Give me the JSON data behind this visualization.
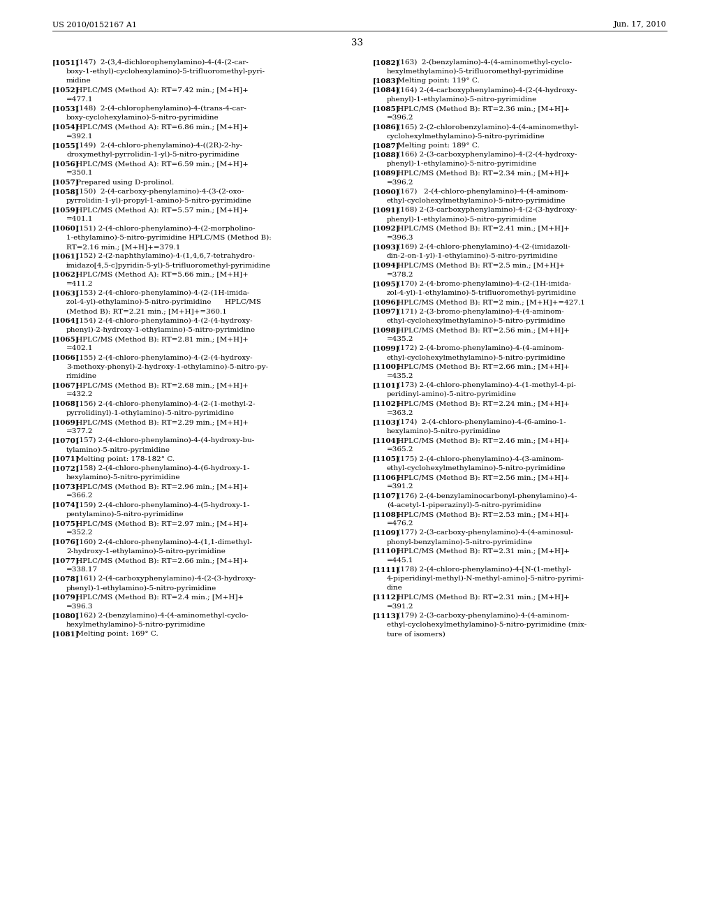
{
  "header_left": "US 2010/0152167 A1",
  "header_right": "Jun. 17, 2010",
  "page_number": "33",
  "bg": "#ffffff",
  "fg": "#000000",
  "left_entries": [
    [
      "[1051]",
      " (147)  2-(3,4-dichlorophenylamino)-4-(4-(2-car-",
      "boxy-1-ethyl)-cyclohexylamino)-5-trifluoromethyl-pyri-",
      "midine"
    ],
    [
      "[1052]",
      " HPLC/MS (Method A): RT=7.42 min.; [M+H]+",
      "=477.1"
    ],
    [
      "[1053]",
      " (148)  2-(4-chlorophenylamino)-4-(trans-4-car-",
      "boxy-cyclohexylamino)-5-nitro-pyrimidine"
    ],
    [
      "[1054]",
      " HPLC/MS (Method A): RT=6.86 min.; [M+H]+",
      "=392.1"
    ],
    [
      "[1055]",
      " (149)  2-(4-chloro-phenylamino)-4-((2R)-2-hy-",
      "droxymethyl-pyrrolidin-1-yl)-5-nitro-pyrimidine"
    ],
    [
      "[1056]",
      " HPLC/MS (Method A): RT=6.59 min.; [M+H]+",
      "=350.1"
    ],
    [
      "[1057]",
      " Prepared using D-prolinol."
    ],
    [
      "[1058]",
      " (150)  2-(4-carboxy-phenylamino)-4-(3-(2-oxo-",
      "pyrrolidin-1-yl)-propyl-1-amino)-5-nitro-pyrimidine"
    ],
    [
      "[1059]",
      " HPLC/MS (Method A): RT=5.57 min.; [M+H]+",
      "=401.1"
    ],
    [
      "[1060]",
      " (151) 2-(4-chloro-phenylamino)-4-(2-morpholino-",
      "1-ethylamino)-5-nitro-pyrimidine HPLC/MS (Method B):",
      "RT=2.16 min.; [M+H]+=379.1"
    ],
    [
      "[1061]",
      " (152) 2-(2-naphthylamino)-4-(1,4,6,7-tetrahydro-",
      "imidazo[4,5-c]pyridin-5-yl)-5-trifluoromethyl-pyrimidine"
    ],
    [
      "[1062]",
      " HPLC/MS (Method A): RT=5.66 min.; [M+H]+",
      "=411.2"
    ],
    [
      "[1063]",
      " (153) 2-(4-chloro-phenylamino)-4-(2-(1H-imida-",
      "zol-4-yl)-ethylamino)-5-nitro-pyrimidine      HPLC/MS",
      "(Method B): RT=2.21 min.; [M+H]+=360.1"
    ],
    [
      "[1064]",
      " (154) 2-(4-chloro-phenylamino)-4-(2-(4-hydroxy-",
      "phenyl)-2-hydroxy-1-ethylamino)-5-nitro-pyrimidine"
    ],
    [
      "[1065]",
      " HPLC/MS (Method B): RT=2.81 min.; [M+H]+",
      "=402.1"
    ],
    [
      "[1066]",
      " (155) 2-(4-chloro-phenylamino)-4-(2-(4-hydroxy-",
      "3-methoxy-phenyl)-2-hydroxy-1-ethylamino)-5-nitro-py-",
      "rimidine"
    ],
    [
      "[1067]",
      " HPLC/MS (Method B): RT=2.68 min.; [M+H]+",
      "=432.2"
    ],
    [
      "[1068]",
      " (156) 2-(4-chloro-phenylamino)-4-(2-(1-methyl-2-",
      "pyrrolidinyl)-1-ethylamino)-5-nitro-pyrimidine"
    ],
    [
      "[1069]",
      " HPLC/MS (Method B): RT=2.29 min.; [M+H]+",
      "=377.2"
    ],
    [
      "[1070]",
      " (157) 2-(4-chloro-phenylamino)-4-(4-hydroxy-bu-",
      "tylamino)-5-nitro-pyrimidine"
    ],
    [
      "[1071]",
      " Melting point: 178-182° C."
    ],
    [
      "[1072]",
      " (158) 2-(4-chloro-phenylamino)-4-(6-hydroxy-1-",
      "hexylamino)-5-nitro-pyrimidine"
    ],
    [
      "[1073]",
      " HPLC/MS (Method B): RT=2.96 min.; [M+H]+",
      "=366.2"
    ],
    [
      "[1074]",
      " (159) 2-(4-chloro-phenylamino)-4-(5-hydroxy-1-",
      "pentylamino)-5-nitro-pyrimidine"
    ],
    [
      "[1075]",
      " HPLC/MS (Method B): RT=2.97 min.; [M+H]+",
      "=352.2"
    ],
    [
      "[1076]",
      " (160) 2-(4-chloro-phenylamino)-4-(1,1-dimethyl-",
      "2-hydroxy-1-ethylamino)-5-nitro-pyrimidine"
    ],
    [
      "[1077]",
      " HPLC/MS (Method B): RT=2.66 min.; [M+H]+",
      "=338.17"
    ],
    [
      "[1078]",
      " (161) 2-(4-carboxyphenylamino)-4-(2-(3-hydroxy-",
      "phenyl)-1-ethylamino)-5-nitro-pyrimidine"
    ],
    [
      "[1079]",
      " HPLC/MS (Method B): RT=2.4 min.; [M+H]+",
      "=396.3"
    ],
    [
      "[1080]",
      " (162) 2-(benzylamino)-4-(4-aminomethyl-cyclo-",
      "hexylmethylamino)-5-nitro-pyrimidine"
    ],
    [
      "[1081]",
      " Melting point: 169° C."
    ]
  ],
  "right_entries": [
    [
      "[1082]",
      " (163)  2-(benzylamino)-4-(4-aminomethyl-cyclo-",
      "hexylmethylamino)-5-trifluoromethyl-pyrimidine"
    ],
    [
      "[1083]",
      " Melting point: 119° C."
    ],
    [
      "[1084]",
      " (164) 2-(4-carboxyphenylamino)-4-(2-(4-hydroxy-",
      "phenyl)-1-ethylamino)-5-nitro-pyrimidine"
    ],
    [
      "[1085]",
      " HPLC/MS (Method B): RT=2.36 min.; [M+H]+",
      "=396.2"
    ],
    [
      "[1086]",
      " (165) 2-(2-chlorobenzylamino)-4-(4-aminomethyl-",
      "cyclohexylmethylamino)-5-nitro-pyrimidine"
    ],
    [
      "[1087]",
      " Melting point: 189° C."
    ],
    [
      "[1088]",
      " (166) 2-(3-carboxyphenylamino)-4-(2-(4-hydroxy-",
      "phenyl)-1-ethylamino)-5-nitro-pyrimidine"
    ],
    [
      "[1089]",
      " HPLC/MS (Method B): RT=2.34 min.; [M+H]+",
      "=396.2"
    ],
    [
      "[1090]",
      " (167)   2-(4-chloro-phenylamino)-4-(4-aminom-",
      "ethyl-cyclohexylmethylamino)-5-nitro-pyrimidine"
    ],
    [
      "[1091]",
      " (168) 2-(3-carboxyphenylamino)-4-(2-(3-hydroxy-",
      "phenyl)-1-ethylamino)-5-nitro-pyrimidine"
    ],
    [
      "[1092]",
      " HPLC/MS (Method B): RT=2.41 min.; [M+H]+",
      "=396.3"
    ],
    [
      "[1093]",
      " (169) 2-(4-chloro-phenylamino)-4-(2-(imidazoli-",
      "din-2-on-1-yl)-1-ethylamino)-5-nitro-pyrimidine"
    ],
    [
      "[1094]",
      " HPLC/MS (Method B): RT=2.5 min.; [M+H]+",
      "=378.2"
    ],
    [
      "[1095]",
      " (170) 2-(4-bromo-phenylamino)-4-(2-(1H-imida-",
      "zol-4-yl)-1-ethylamino)-5-trifluoromethyl-pyrimidine"
    ],
    [
      "[1096]",
      " HPLC/MS (Method B): RT=2 min.; [M+H]+=427.1"
    ],
    [
      "[1097]",
      " (171) 2-(3-bromo-phenylamino)-4-(4-aminom-",
      "ethyl-cyclohexylmethylamino)-5-nitro-pyrimidine"
    ],
    [
      "[1098]",
      " HPLC/MS (Method B): RT=2.56 min.; [M+H]+",
      "=435.2"
    ],
    [
      "[1099]",
      " (172) 2-(4-bromo-phenylamino)-4-(4-aminom-",
      "ethyl-cyclohexylmethylamino)-5-nitro-pyrimidine"
    ],
    [
      "[1100]",
      " HPLC/MS (Method B): RT=2.66 min.; [M+H]+",
      "=435.2"
    ],
    [
      "[1101]",
      " (173) 2-(4-chloro-phenylamino)-4-(1-methyl-4-pi-",
      "peridinyl-amino)-5-nitro-pyrimidine"
    ],
    [
      "[1102]",
      " HPLC/MS (Method B): RT=2.24 min.; [M+H]+",
      "=363.2"
    ],
    [
      "[1103]",
      " (174)  2-(4-chloro-phenylamino)-4-(6-amino-1-",
      "hexylamino)-5-nitro-pyrimidine"
    ],
    [
      "[1104]",
      " HPLC/MS (Method B): RT=2.46 min.; [M+H]+",
      "=365.2"
    ],
    [
      "[1105]",
      " (175) 2-(4-chloro-phenylamino)-4-(3-aminom-",
      "ethyl-cyclohexylmethylamino)-5-nitro-pyrimidine"
    ],
    [
      "[1106]",
      " HPLC/MS (Method B): RT=2.56 min.; [M+H]+",
      "=391.2"
    ],
    [
      "[1107]",
      " (176) 2-(4-benzylaminocarbonyl-phenylamino)-4-",
      "(4-acetyl-1-piperazinyl)-5-nitro-pyrimidine"
    ],
    [
      "[1108]",
      " HPLC/MS (Method B): RT=2.53 min.; [M+H]+",
      "=476.2"
    ],
    [
      "[1109]",
      " (177) 2-(3-carboxy-phenylamino)-4-(4-aminosul-",
      "phonyl-benzylamino)-5-nitro-pyrimidine"
    ],
    [
      "[1110]",
      " HPLC/MS (Method B): RT=2.31 min.; [M+H]+",
      "=445.1"
    ],
    [
      "[1111]",
      " (178) 2-(4-chloro-phenylamino)-4-[N-(1-methyl-",
      "4-piperidinyl-methyl)-N-methyl-amino]-5-nitro-pyrimi-",
      "dine"
    ],
    [
      "[1112]",
      " HPLC/MS (Method B): RT=2.31 min.; [M+H]+",
      "=391.2"
    ],
    [
      "[1113]",
      " (179) 2-(3-carboxy-phenylamino)-4-(4-aminom-",
      "ethyl-cyclohexylmethylamino)-5-nitro-pyrimidine (mix-",
      "ture of isomers)"
    ]
  ]
}
